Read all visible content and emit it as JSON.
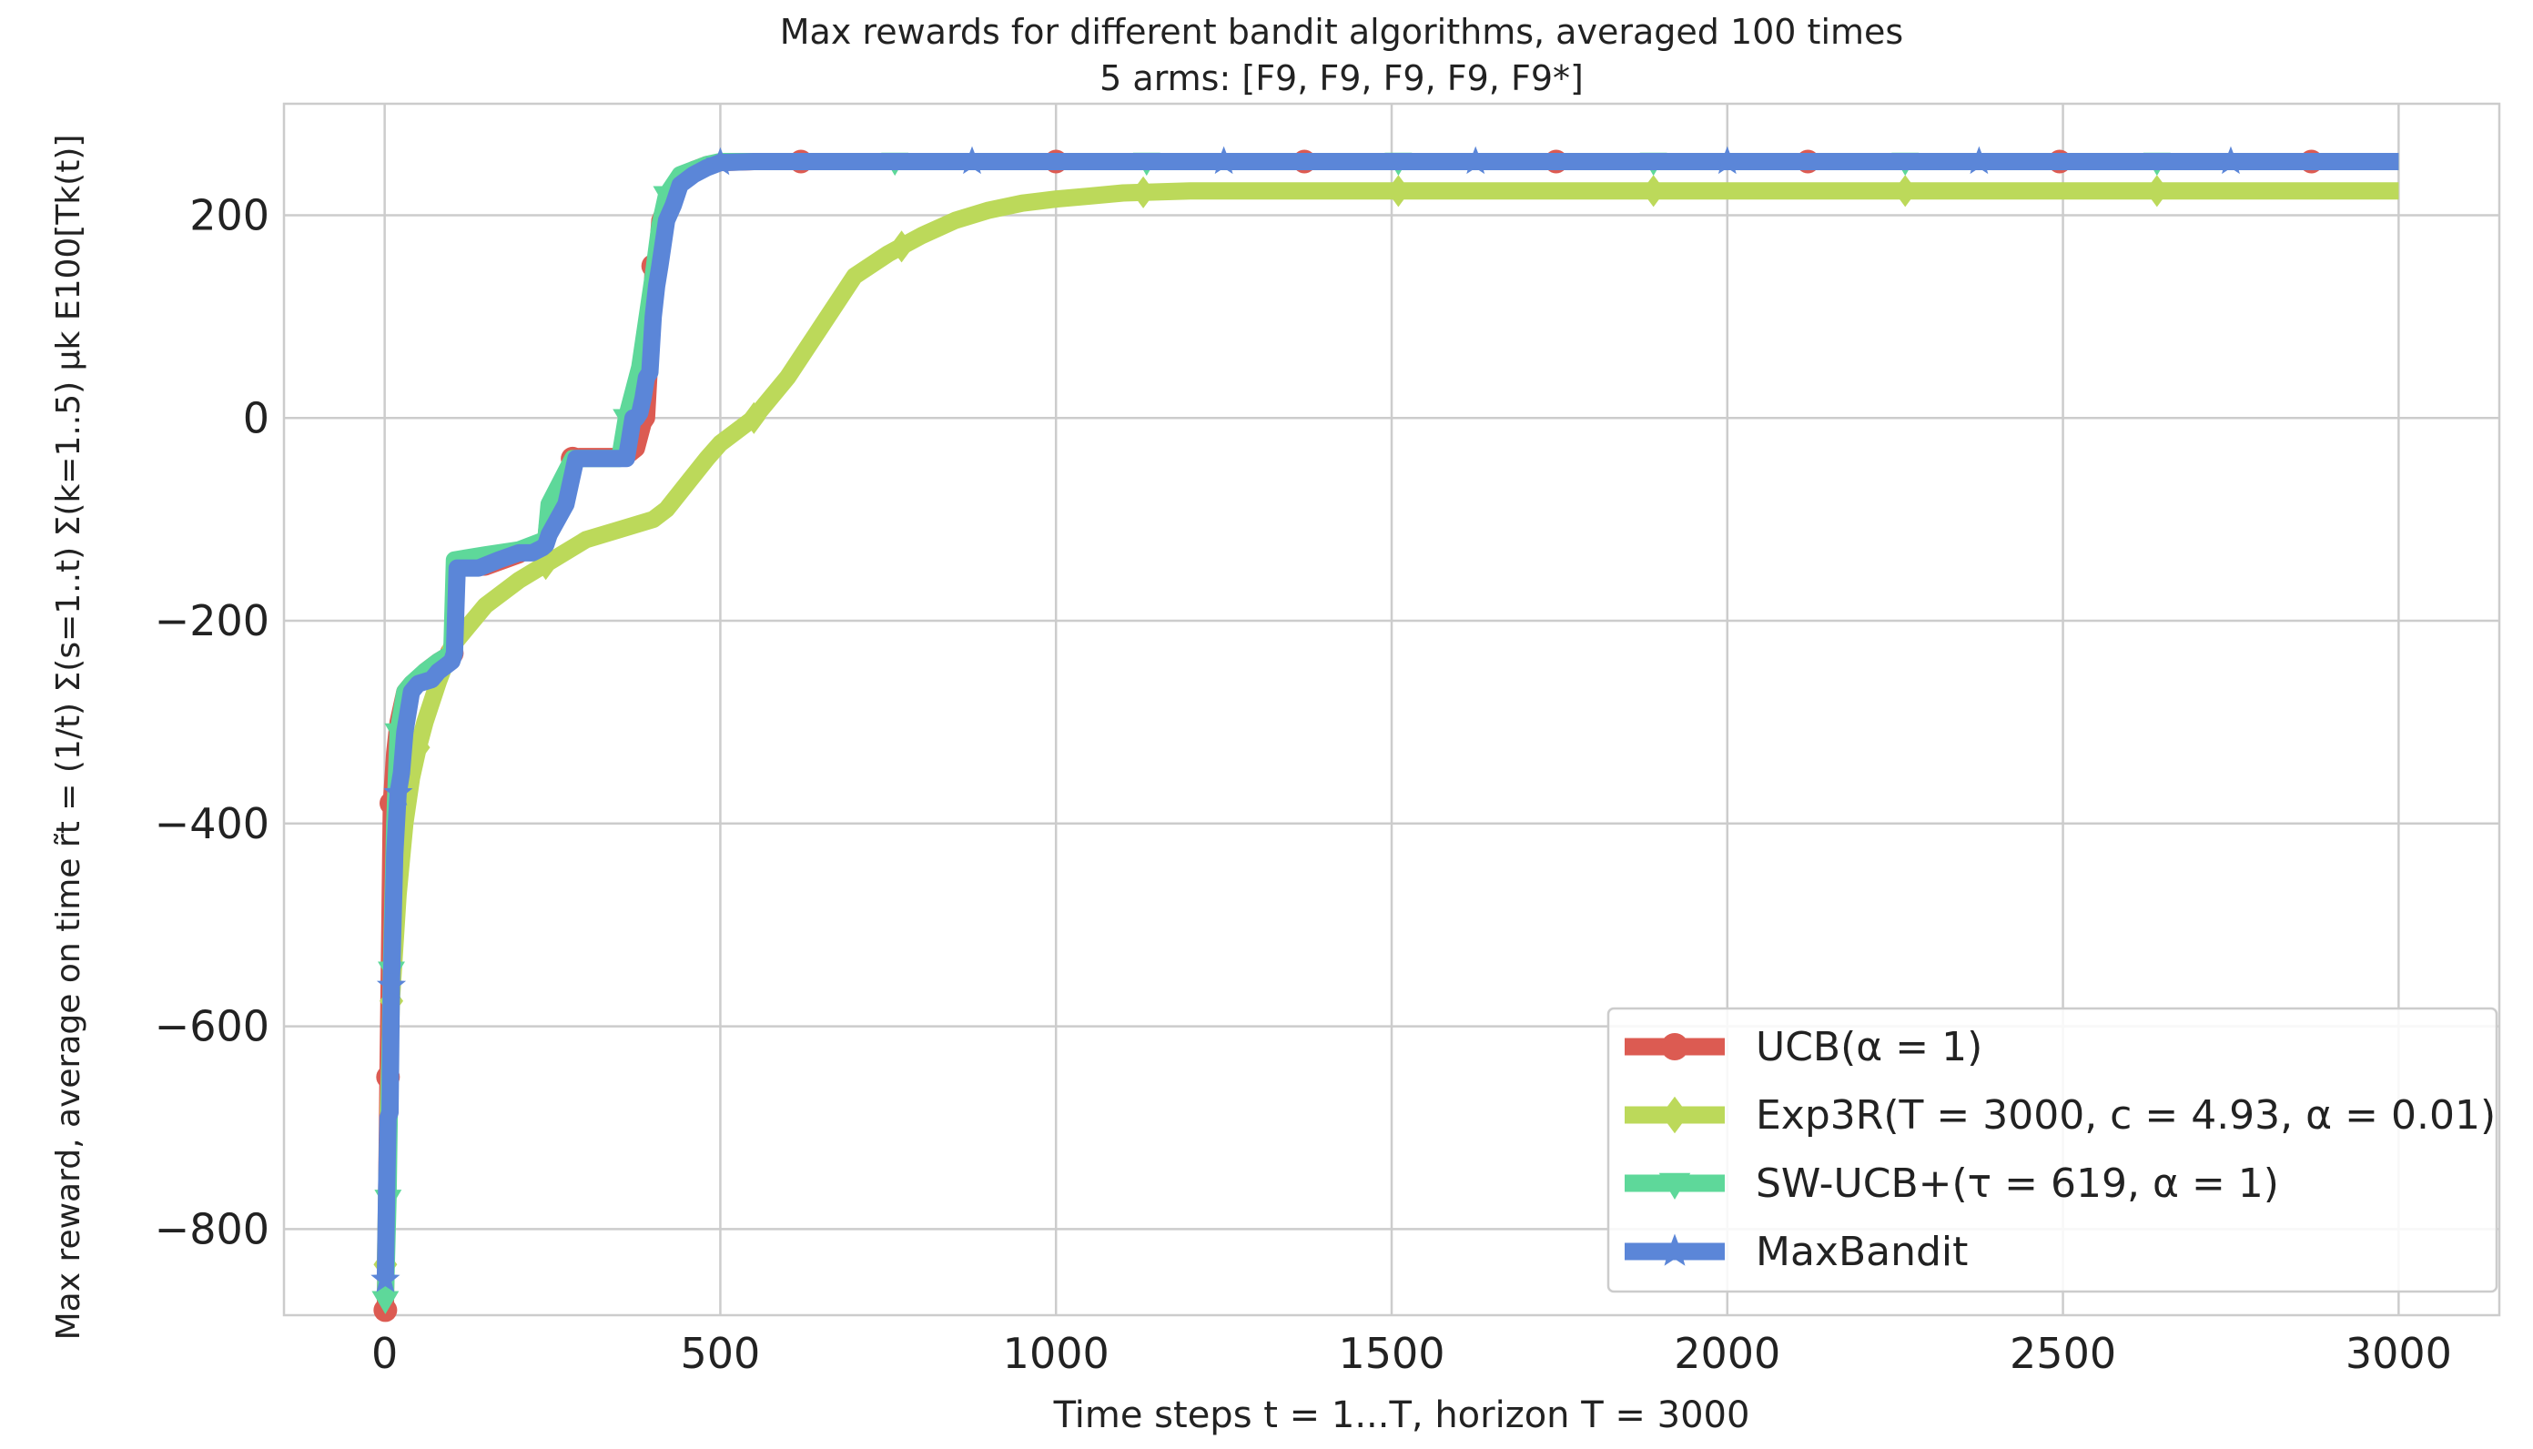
{
  "chart_data": {
    "type": "line",
    "title": "Max rewards for different bandit algorithms, averaged 100 times",
    "subtitle": "5 arms: [F9, F9, F9, F9, F9*]",
    "xlabel": "Time steps t = 1...T, horizon T = 3000",
    "ylabel": "Max reward, average on time r̃t = (1/t) Σ(s=1..t) Σ(k=1..5) μk E100[Tk(t)]",
    "xlim": [
      -150,
      3150
    ],
    "ylim": [
      -885,
      310
    ],
    "xticks": [
      0,
      500,
      1000,
      1500,
      2000,
      2500,
      3000
    ],
    "xtick_labels": [
      "0",
      "500",
      "1000",
      "1500",
      "2000",
      "2500",
      "3000"
    ],
    "yticks": [
      -800,
      -600,
      -400,
      -200,
      0,
      200
    ],
    "ytick_labels": [
      "−800",
      "−600",
      "−400",
      "−200",
      "0",
      "200"
    ],
    "grid": true,
    "legend_position": "lower-right",
    "series": [
      {
        "name": "UCB(α = 1)",
        "color": "#dc5b52",
        "marker": "circle",
        "x": [
          1,
          5,
          10,
          15,
          20,
          30,
          40,
          50,
          60,
          80,
          100,
          104,
          108,
          150,
          200,
          240,
          245,
          280,
          290,
          300,
          360,
          375,
          385,
          390,
          395,
          400,
          405,
          410,
          420,
          440,
          460,
          480,
          500,
          550,
          620,
          700,
          1000,
          1500,
          2000,
          2500,
          3000
        ],
        "y": [
          -880,
          -650,
          -380,
          -330,
          -300,
          -270,
          -262,
          -258,
          -250,
          -240,
          -232,
          -200,
          -148,
          -147,
          -135,
          -120,
          -90,
          -40,
          -38,
          -38,
          -38,
          -30,
          -5,
          0,
          60,
          150,
          150,
          195,
          210,
          235,
          245,
          250,
          252,
          253,
          253,
          253,
          253,
          253,
          253,
          253,
          253
        ],
        "marker_x": [
          1,
          5,
          10,
          100,
          280,
          400,
          620,
          1000,
          1370,
          1745,
          2120,
          2495,
          2870
        ]
      },
      {
        "name": "Exp3R(T = 3000, c = 4.93, α = 0.01)",
        "color": "#bcd95a",
        "marker": "diamond",
        "x": [
          1,
          5,
          10,
          20,
          30,
          40,
          50,
          60,
          80,
          100,
          125,
          150,
          200,
          250,
          300,
          350,
          400,
          420,
          450,
          480,
          500,
          550,
          600,
          650,
          700,
          750,
          800,
          850,
          900,
          950,
          1000,
          1050,
          1100,
          1150,
          1200,
          1500,
          2000,
          2500,
          3000
        ],
        "y": [
          -835,
          -700,
          -575,
          -470,
          -400,
          -355,
          -325,
          -300,
          -260,
          -225,
          -205,
          -185,
          -160,
          -140,
          -120,
          -110,
          -100,
          -90,
          -65,
          -40,
          -25,
          0,
          40,
          90,
          140,
          162,
          180,
          195,
          205,
          212,
          216,
          219,
          222,
          223,
          224,
          224,
          224,
          224,
          224
        ],
        "marker_x": [
          1,
          10,
          50,
          240,
          550,
          770,
          1130,
          1510,
          1890,
          2265,
          2640
        ]
      },
      {
        "name": "SW-UCB+(τ = 619, α = 1)",
        "color": "#5ed89a",
        "marker": "triangle-down",
        "x": [
          1,
          5,
          10,
          15,
          20,
          30,
          40,
          60,
          80,
          100,
          104,
          150,
          200,
          240,
          245,
          280,
          300,
          350,
          360,
          380,
          400,
          410,
          420,
          440,
          460,
          480,
          500,
          560,
          1000,
          1500,
          2000,
          2500,
          3000
        ],
        "y": [
          -870,
          -770,
          -545,
          -400,
          -310,
          -270,
          -262,
          -250,
          -240,
          -232,
          -140,
          -135,
          -130,
          -120,
          -85,
          -40,
          -40,
          -40,
          0,
          50,
          140,
          190,
          220,
          240,
          245,
          250,
          253,
          253,
          253,
          253,
          253,
          253,
          253
        ],
        "marker_x": [
          1,
          5,
          10,
          20,
          360,
          420,
          760,
          1135,
          1510,
          1890,
          2265,
          2640
        ]
      },
      {
        "name": "MaxBandit",
        "color": "#5b86d8",
        "marker": "star",
        "x": [
          1,
          3,
          5,
          8,
          10,
          15,
          20,
          25,
          30,
          40,
          50,
          70,
          80,
          90,
          100,
          104,
          108,
          140,
          170,
          200,
          220,
          235,
          240,
          245,
          270,
          285,
          300,
          350,
          360,
          365,
          370,
          375,
          380,
          385,
          390,
          395,
          400,
          405,
          410,
          420,
          430,
          440,
          460,
          480,
          500,
          550,
          1000,
          1500,
          2000,
          2500,
          3000
        ],
        "y": [
          -850,
          -760,
          -690,
          -685,
          -560,
          -430,
          -370,
          -350,
          -310,
          -270,
          -262,
          -258,
          -250,
          -245,
          -240,
          -232,
          -148,
          -148,
          -140,
          -133,
          -133,
          -128,
          -125,
          -115,
          -85,
          -40,
          -40,
          -40,
          -40,
          -20,
          0,
          0,
          5,
          20,
          40,
          45,
          100,
          130,
          150,
          195,
          210,
          230,
          240,
          247,
          252,
          253,
          253,
          253,
          253,
          253,
          253
        ],
        "marker_x": [
          1,
          10,
          20,
          500,
          875,
          1250,
          1625,
          2000,
          2375,
          2750
        ]
      }
    ]
  }
}
